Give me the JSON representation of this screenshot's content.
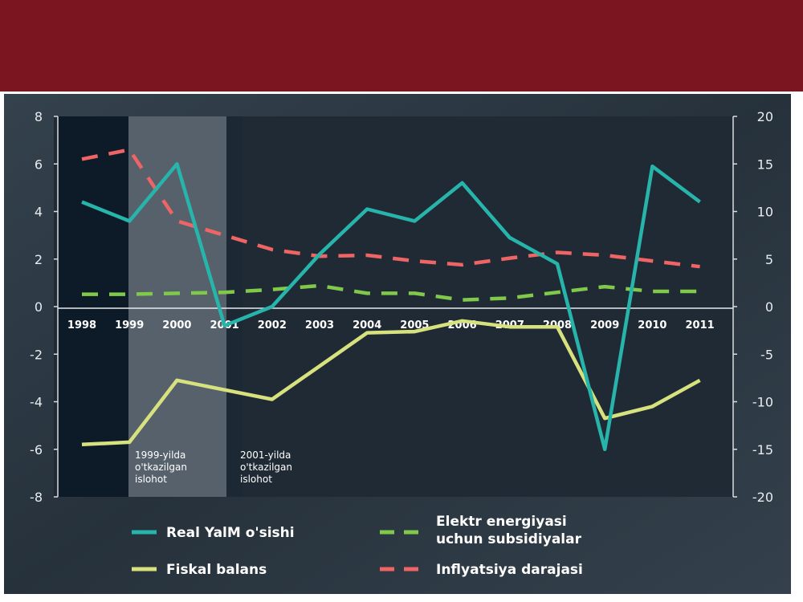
{
  "colors": {
    "banner": "#7b1520",
    "panel": "#2b3641",
    "real_gdp": "#27b4aa",
    "fiscal": "#d7e27f",
    "electric": "#80c94a",
    "inflation": "#ef6464"
  },
  "chart_data": {
    "type": "line",
    "x": [
      "1998",
      "1999",
      "2000",
      "2001",
      "2002",
      "2003",
      "2004",
      "2005",
      "2006",
      "2007",
      "2008",
      "2009",
      "2010",
      "2011"
    ],
    "y_left": {
      "range": [
        -8,
        8
      ],
      "ticks": [
        "8",
        "6",
        "4",
        "2",
        "0",
        "-2",
        "-4",
        "-6",
        "-8"
      ]
    },
    "y_right": {
      "range": [
        -20,
        20
      ],
      "ticks": [
        "20",
        "15",
        "10",
        "5",
        "0",
        "-5",
        "-10",
        "-15",
        "-20"
      ]
    },
    "series": [
      {
        "name": "Real YalM o'sishi",
        "axis": "left",
        "style": "solid",
        "values": [
          4.4,
          3.6,
          6.0,
          -0.8,
          0.0,
          2.2,
          4.1,
          3.6,
          5.2,
          2.9,
          1.8,
          -6.0,
          5.9,
          4.4
        ]
      },
      {
        "name": "Fiskal balans",
        "axis": "left",
        "style": "solid",
        "values": [
          -5.8,
          -5.7,
          -3.1,
          -3.5,
          -3.9,
          -2.5,
          -1.1,
          -1.05,
          -0.6,
          -0.85,
          -0.85,
          -4.7,
          -4.2,
          -3.1
        ]
      },
      {
        "name": "Elektr energiyasi uchun subsidiyalar",
        "axis": "right",
        "style": "dashed",
        "values": [
          1.3,
          1.3,
          1.4,
          1.5,
          1.8,
          2.2,
          1.4,
          1.4,
          0.7,
          0.9,
          1.5,
          2.1,
          1.6,
          1.6
        ]
      },
      {
        "name": "Inflyatsiya darajasi",
        "axis": "right",
        "style": "dashed",
        "values": [
          15.5,
          16.5,
          9.0,
          7.5,
          6.0,
          5.3,
          5.4,
          4.8,
          4.4,
          5.1,
          5.7,
          5.4,
          4.8,
          4.2
        ]
      }
    ],
    "annotations": [
      [
        "1999-yilda",
        "o'tkazilgan",
        "islohot"
      ],
      [
        "2001-yilda",
        "o'tkazilgan",
        "islohot"
      ]
    ],
    "legend_placement": "bottom",
    "grid": false
  },
  "legend": {
    "real_gdp": "Real YalM o'sishi",
    "fiscal": "Fiskal balans",
    "electric_line1": "Elektr energiyasi",
    "electric_line2": "uchun subsidiyalar",
    "inflation": "Inflyatsiya darajasi"
  }
}
